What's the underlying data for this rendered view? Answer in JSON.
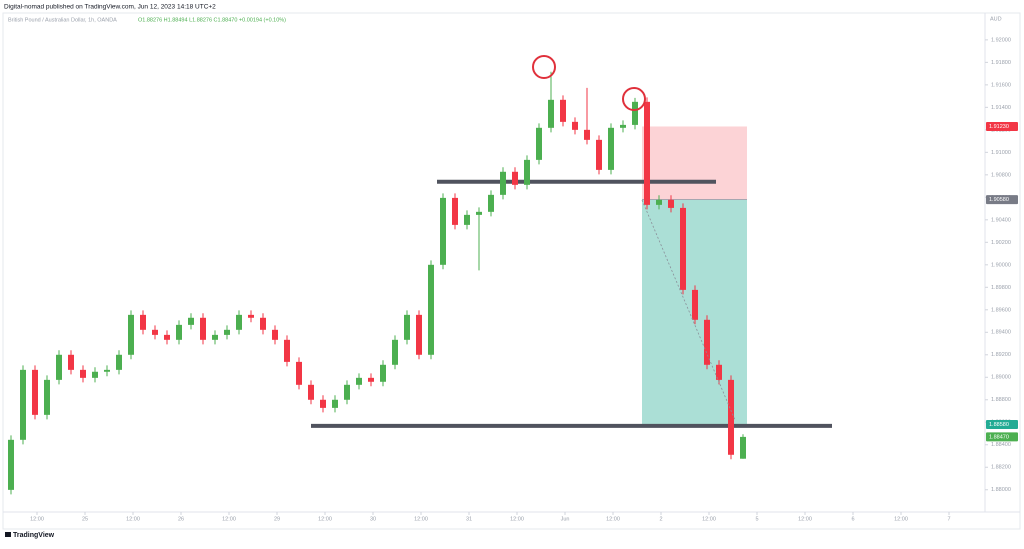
{
  "header": {
    "published": "Digital-nomad published on TradingView.com, Jun 12, 2023 14:18 UTC+2"
  },
  "chart_data": {
    "type": "candlestick",
    "title": "British Pound / Australian Dollar, 1h, OANDA",
    "ohlc_text": "O1.88276 H1.88494 L1.88276 C1.88470 +0.00194 (+0.10%)",
    "currency": "AUD",
    "x": [
      1.5,
      4.5,
      7.5,
      10.5,
      13.5,
      16.5,
      19.5,
      22.5,
      25.5,
      28.5,
      31.5,
      34.5,
      37.5,
      40.5,
      43.5,
      46.5,
      49.5,
      52.5,
      55.5,
      58.5,
      61.5,
      64.5,
      67.5,
      70.5,
      73.5,
      76.5,
      79.5,
      82.5,
      85.5,
      88.5,
      91.5,
      94.5,
      97.5,
      100.5,
      103.5,
      106.5,
      109.5,
      112.5,
      115.5,
      118.5,
      121.5,
      124.5,
      127.5,
      130.5,
      133.5,
      136.5,
      139.5,
      142.5,
      145.5,
      148.5,
      151.5,
      154.5,
      157.5,
      160.5,
      163.5,
      166.5,
      169.5,
      172.5,
      175.5,
      178.5,
      181.5,
      184.5
    ],
    "open": [
      1.87999,
      1.88444,
      1.89066,
      1.88666,
      1.88977,
      1.892,
      1.89066,
      1.88995,
      1.89049,
      1.89066,
      1.892,
      1.89555,
      1.89422,
      1.89377,
      1.89333,
      1.89466,
      1.89529,
      1.89333,
      1.89377,
      1.89422,
      1.89555,
      1.89529,
      1.89422,
      1.89333,
      1.89137,
      1.88933,
      1.888,
      1.88728,
      1.888,
      1.88933,
      1.88995,
      1.8896,
      1.89111,
      1.89333,
      1.89555,
      1.892,
      1.9,
      1.90595,
      1.90355,
      1.90444,
      1.90471,
      1.90622,
      1.90827,
      1.90711,
      1.90933,
      1.91218,
      1.91467,
      1.91271,
      1.912,
      1.91111,
      1.90844,
      1.91218,
      1.91244,
      1.91449,
      1.90533,
      1.90578,
      1.90506,
      1.89777,
      1.89511,
      1.89111,
      1.88977,
      1.88276
    ],
    "high": [
      1.88484,
      1.89106,
      1.89106,
      1.89017,
      1.8924,
      1.8924,
      1.89106,
      1.89089,
      1.89106,
      1.8924,
      1.89595,
      1.89595,
      1.89462,
      1.89417,
      1.89506,
      1.89569,
      1.89569,
      1.89417,
      1.89462,
      1.89595,
      1.89595,
      1.89569,
      1.89462,
      1.89373,
      1.89177,
      1.88973,
      1.8884,
      1.8884,
      1.88973,
      1.89035,
      1.89035,
      1.89151,
      1.89373,
      1.89595,
      1.89595,
      1.9004,
      1.90635,
      1.90635,
      1.90484,
      1.90511,
      1.90662,
      1.90867,
      1.90867,
      1.90973,
      1.91258,
      1.91716,
      1.91507,
      1.91311,
      1.91573,
      1.91151,
      1.91258,
      1.91284,
      1.91484,
      1.91489,
      1.90618,
      1.90618,
      1.90546,
      1.89817,
      1.89551,
      1.89151,
      1.89017,
      1.88494
    ],
    "low": [
      1.87959,
      1.88404,
      1.88626,
      1.88626,
      1.88937,
      1.89026,
      1.88955,
      1.88955,
      1.89009,
      1.89026,
      1.8916,
      1.89382,
      1.89337,
      1.89293,
      1.89293,
      1.89426,
      1.89293,
      1.89293,
      1.89337,
      1.89382,
      1.89489,
      1.89382,
      1.89293,
      1.89097,
      1.88893,
      1.8876,
      1.88688,
      1.88688,
      1.8876,
      1.88893,
      1.8892,
      1.8892,
      1.89071,
      1.89293,
      1.8916,
      1.8916,
      1.8996,
      1.90315,
      1.90315,
      1.8995,
      1.90431,
      1.90582,
      1.90671,
      1.90671,
      1.90893,
      1.91178,
      1.91231,
      1.9116,
      1.91071,
      1.90804,
      1.90804,
      1.91178,
      1.91204,
      1.90493,
      1.90493,
      1.90466,
      1.89737,
      1.89471,
      1.89071,
      1.88937,
      1.88271,
      1.88276
    ],
    "close": [
      1.88444,
      1.89066,
      1.88666,
      1.88977,
      1.892,
      1.89066,
      1.88995,
      1.89049,
      1.89066,
      1.892,
      1.89555,
      1.89422,
      1.89377,
      1.89333,
      1.89466,
      1.89529,
      1.89333,
      1.89377,
      1.89422,
      1.89555,
      1.89529,
      1.89422,
      1.89333,
      1.89137,
      1.88933,
      1.888,
      1.88728,
      1.888,
      1.88933,
      1.88995,
      1.8896,
      1.89111,
      1.89333,
      1.89555,
      1.892,
      1.9,
      1.90595,
      1.90355,
      1.90444,
      1.90471,
      1.90622,
      1.90827,
      1.90711,
      1.90933,
      1.91218,
      1.91467,
      1.91271,
      1.912,
      1.91111,
      1.90844,
      1.91218,
      1.91244,
      1.91449,
      1.90533,
      1.90578,
      1.90506,
      1.89777,
      1.89511,
      1.89111,
      1.88977,
      1.88311,
      1.8847
    ],
    "up_color": "#4caf50",
    "down_color": "#f23645",
    "xlim": [
      0,
      245
    ],
    "ylim": [
      1.8782,
      1.9223
    ],
    "xticks": [
      {
        "value": 8,
        "label": "12:00"
      },
      {
        "value": 20,
        "label": "25"
      },
      {
        "value": 32,
        "label": "12:00"
      },
      {
        "value": 44,
        "label": "26"
      },
      {
        "value": 56,
        "label": "12:00"
      },
      {
        "value": 68,
        "label": "29"
      },
      {
        "value": 80,
        "label": "12:00"
      },
      {
        "value": 92,
        "label": "30"
      },
      {
        "value": 104,
        "label": "12:00"
      },
      {
        "value": 116,
        "label": "31"
      },
      {
        "value": 128,
        "label": "12:00"
      },
      {
        "value": 140,
        "label": "Jun"
      },
      {
        "value": 152,
        "label": "12:00"
      },
      {
        "value": 164,
        "label": "2"
      },
      {
        "value": 176,
        "label": "12:00"
      },
      {
        "value": 188,
        "label": "5"
      },
      {
        "value": 200,
        "label": "12:00"
      },
      {
        "value": 212,
        "label": "6"
      },
      {
        "value": 224,
        "label": "12:00"
      },
      {
        "value": 236,
        "label": "7"
      }
    ],
    "yticks": [
      {
        "value": 1.88,
        "label": "1.88000"
      },
      {
        "value": 1.882,
        "label": "1.88200"
      },
      {
        "value": 1.884,
        "label": "1.88400"
      },
      {
        "value": 1.886,
        "label": "1.88600"
      },
      {
        "value": 1.888,
        "label": "1.88800"
      },
      {
        "value": 1.89,
        "label": "1.89000"
      },
      {
        "value": 1.892,
        "label": "1.89200"
      },
      {
        "value": 1.894,
        "label": "1.89400"
      },
      {
        "value": 1.896,
        "label": "1.89600"
      },
      {
        "value": 1.898,
        "label": "1.89800"
      },
      {
        "value": 1.9,
        "label": "1.90000"
      },
      {
        "value": 1.902,
        "label": "1.90200"
      },
      {
        "value": 1.904,
        "label": "1.90400"
      },
      {
        "value": 1.906,
        "label": "1.90600"
      },
      {
        "value": 1.908,
        "label": "1.90800"
      },
      {
        "value": 1.91,
        "label": "1.91000"
      },
      {
        "value": 1.912,
        "label": "1.91200"
      },
      {
        "value": 1.914,
        "label": "1.91400"
      },
      {
        "value": 1.916,
        "label": "1.91600"
      },
      {
        "value": 1.918,
        "label": "1.91800"
      },
      {
        "value": 1.92,
        "label": "1.92000"
      }
    ],
    "levels": [
      {
        "price": 1.90738,
        "from": 108,
        "to": 177.75
      },
      {
        "price": 1.88568,
        "from": 76.5,
        "to": 206.75
      }
    ],
    "position": {
      "from": 159.25,
      "to": 185.5,
      "stop": {
        "value": 1.9123,
        "label": "1.91230"
      },
      "entry": {
        "value": 1.9058,
        "label": "1.90580"
      },
      "target": {
        "value": 1.8858,
        "label": "1.88580"
      }
    },
    "last_price": {
      "value": 1.8847,
      "label": "1.88470"
    }
  },
  "footer": {
    "brand": "TradingView"
  }
}
